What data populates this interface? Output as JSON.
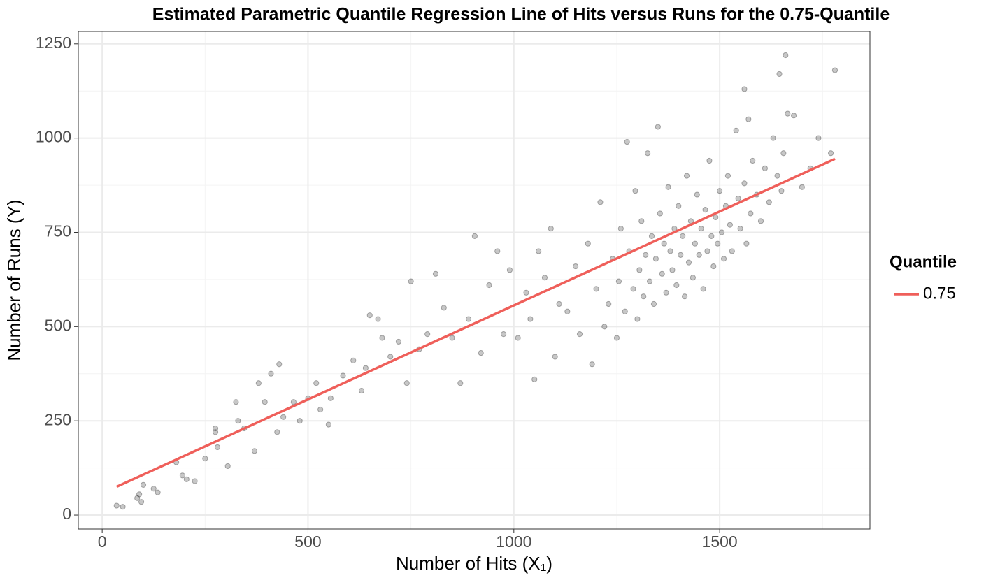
{
  "chart_data": {
    "type": "scatter",
    "title": "Estimated Parametric Quantile Regression Line of Hits versus Runs for the 0.75-Quantile",
    "x_label": "Number of Hits (X₁)",
    "y_label": "Number of Runs (Y)",
    "legend_title": "Quantile",
    "legend": "right",
    "grid": true,
    "xlim": [
      -58,
      1865
    ],
    "ylim": [
      -37,
      1283
    ],
    "xticks": [
      0,
      500,
      1000,
      1500
    ],
    "yticks": [
      0,
      250,
      500,
      750,
      1000,
      1250
    ],
    "xminor_ticks": [
      250,
      750,
      1250,
      1750
    ],
    "yminor_ticks": [
      125,
      375,
      625,
      875,
      1125
    ],
    "series": [
      {
        "type": "scatter",
        "color": "#000000",
        "x": [
          35,
          50,
          85,
          90,
          95,
          100,
          125,
          135,
          180,
          195,
          205,
          225,
          250,
          275,
          275,
          280,
          305,
          325,
          330,
          345,
          370,
          380,
          395,
          410,
          425,
          430,
          440,
          465,
          480,
          500,
          520,
          530,
          550,
          555,
          585,
          610,
          630,
          640,
          650,
          670,
          680,
          700,
          720,
          740,
          750,
          770,
          790,
          810,
          830,
          850,
          870,
          890,
          905,
          920,
          940,
          960,
          975,
          990,
          1010,
          1030,
          1040,
          1050,
          1060,
          1075,
          1090,
          1100,
          1110,
          1130,
          1150,
          1160,
          1180,
          1190,
          1200,
          1210,
          1220,
          1230,
          1240,
          1250,
          1255,
          1260,
          1270,
          1275,
          1280,
          1290,
          1295,
          1300,
          1305,
          1310,
          1315,
          1320,
          1325,
          1330,
          1335,
          1340,
          1345,
          1350,
          1355,
          1360,
          1365,
          1370,
          1375,
          1380,
          1385,
          1390,
          1395,
          1400,
          1405,
          1410,
          1415,
          1420,
          1425,
          1430,
          1435,
          1440,
          1445,
          1450,
          1455,
          1460,
          1465,
          1470,
          1475,
          1480,
          1485,
          1490,
          1495,
          1500,
          1505,
          1510,
          1515,
          1520,
          1525,
          1530,
          1540,
          1545,
          1550,
          1560,
          1565,
          1570,
          1575,
          1580,
          1590,
          1600,
          1610,
          1620,
          1630,
          1640,
          1645,
          1650,
          1655,
          1660,
          1665,
          1680,
          1700,
          1720,
          1740,
          1770,
          1780,
          1560
        ],
        "values": [
          25,
          22,
          45,
          55,
          35,
          80,
          70,
          60,
          140,
          105,
          95,
          90,
          150,
          220,
          230,
          180,
          130,
          300,
          250,
          230,
          170,
          350,
          300,
          375,
          220,
          400,
          260,
          300,
          250,
          310,
          350,
          280,
          240,
          310,
          370,
          410,
          330,
          390,
          530,
          520,
          470,
          420,
          460,
          350,
          620,
          440,
          480,
          640,
          550,
          470,
          350,
          520,
          740,
          430,
          610,
          700,
          480,
          650,
          470,
          590,
          520,
          360,
          700,
          630,
          760,
          420,
          560,
          540,
          660,
          480,
          720,
          400,
          600,
          830,
          500,
          560,
          680,
          470,
          620,
          760,
          540,
          990,
          700,
          600,
          860,
          520,
          650,
          780,
          580,
          690,
          960,
          620,
          740,
          560,
          680,
          1030,
          800,
          640,
          720,
          590,
          870,
          700,
          650,
          760,
          610,
          820,
          690,
          740,
          580,
          900,
          670,
          780,
          630,
          720,
          850,
          690,
          760,
          600,
          810,
          700,
          940,
          740,
          660,
          790,
          720,
          860,
          750,
          680,
          820,
          900,
          770,
          700,
          1020,
          840,
          760,
          880,
          720,
          1050,
          800,
          940,
          850,
          780,
          920,
          830,
          1000,
          900,
          1170,
          860,
          960,
          1220,
          1065,
          1060,
          870,
          920,
          1000,
          960,
          1180,
          1130
        ]
      },
      {
        "type": "line",
        "name": "0.75",
        "color": "#ef5f5a",
        "x": [
          35,
          1780
        ],
        "values": [
          75,
          945
        ]
      }
    ]
  }
}
